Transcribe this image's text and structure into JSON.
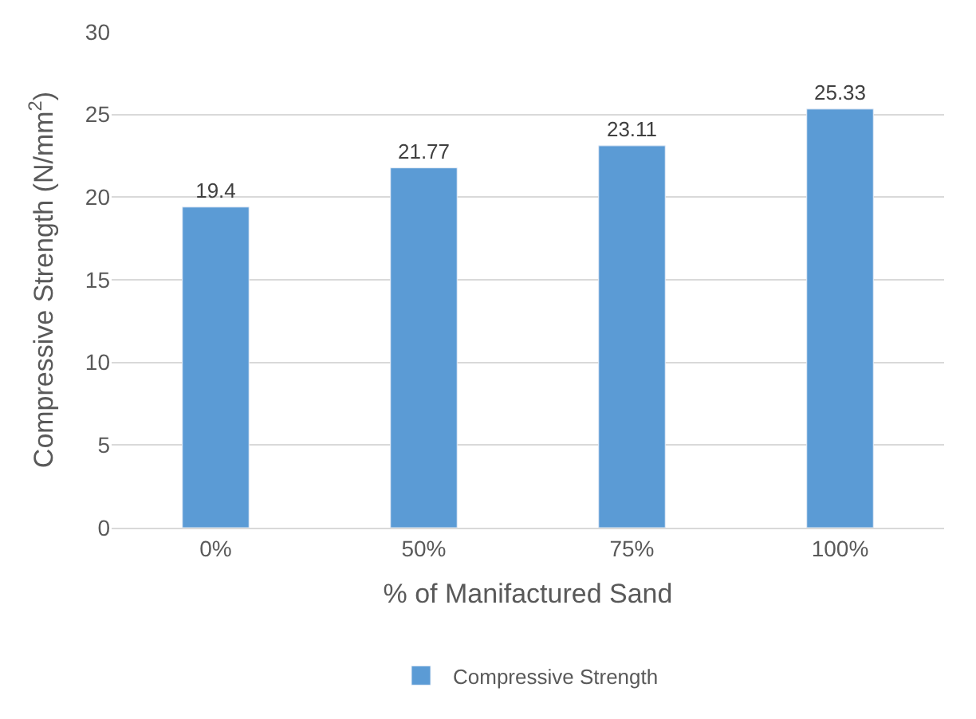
{
  "chart_data": {
    "type": "bar",
    "xlabel": "% of Manifactured Sand",
    "ylabel": "Compressive Strength (N/mm$^{2}$)",
    "categories": [
      "0%",
      "50%",
      "75%",
      "100%"
    ],
    "series": [
      {
        "name": "Compressive Strength",
        "color": "#5b9bd5",
        "values": [
          19.4,
          21.77,
          23.11,
          25.33
        ]
      }
    ],
    "ylim": [
      0,
      30
    ],
    "yticks": [
      0,
      5,
      10,
      15,
      20,
      25,
      30
    ],
    "grid": "y",
    "legend": "bottom",
    "data_labels": true
  }
}
